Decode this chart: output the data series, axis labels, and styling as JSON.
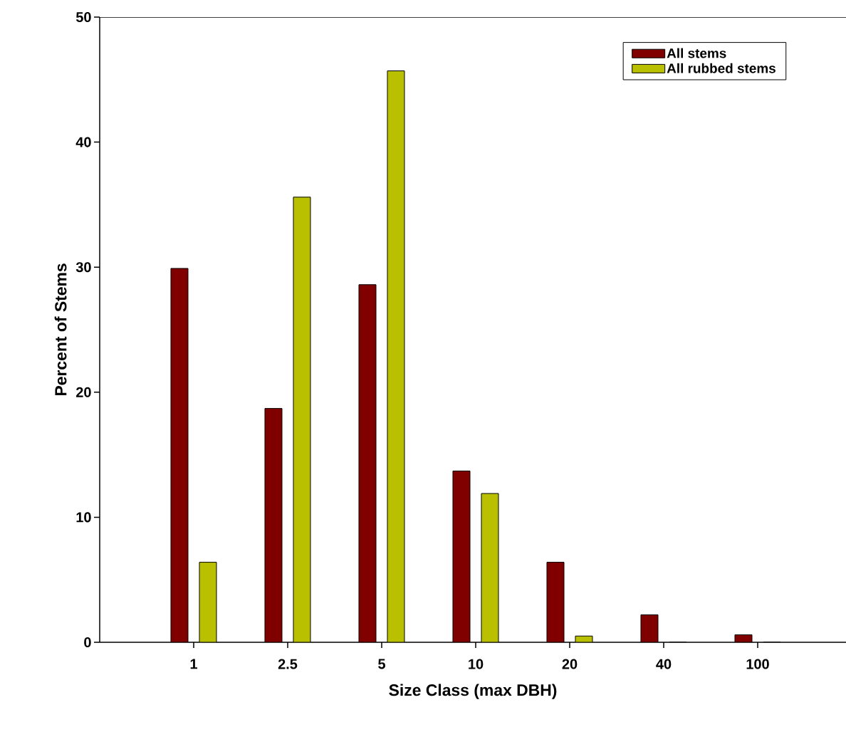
{
  "chart_data": {
    "type": "bar",
    "xlabel": "Size Class (max DBH)",
    "ylabel": "Percent of Stems",
    "categories": [
      "1",
      "2.5",
      "5",
      "10",
      "20",
      "40",
      "100"
    ],
    "series": [
      {
        "name": "All stems",
        "color": "#800000",
        "values": [
          29.9,
          18.7,
          28.6,
          13.7,
          6.4,
          2.2,
          0.6
        ]
      },
      {
        "name": "All rubbed stems",
        "color": "#b8c000",
        "values": [
          6.4,
          35.6,
          45.7,
          11.9,
          0.5,
          0,
          0
        ]
      }
    ],
    "ylim": [
      0,
      50
    ],
    "yticks": [
      0,
      10,
      20,
      30,
      40,
      50
    ],
    "grid": false,
    "legend": "top right"
  }
}
